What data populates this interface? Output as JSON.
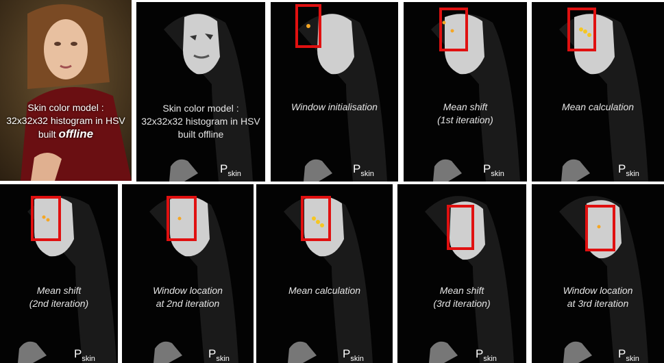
{
  "panels": [
    {
      "id": "p1",
      "caption": [
        "Skin color model :",
        "32x32x32 histogram in HSV",
        "built"
      ],
      "caption_emph": "offline",
      "photo": true
    },
    {
      "id": "p2",
      "caption": [
        "Skin color model :",
        "32x32x32 histogram in HSV",
        "built offline"
      ],
      "label_main": "P",
      "label_sub": "skin"
    },
    {
      "id": "p3",
      "caption": [
        "Window initialisation"
      ],
      "label_main": "P",
      "label_sub": "skin"
    },
    {
      "id": "p4",
      "caption": [
        "Mean shift",
        "(1st iteration)"
      ],
      "label_main": "P",
      "label_sub": "skin"
    },
    {
      "id": "p5",
      "caption": [
        "Mean calculation"
      ],
      "label_main": "P",
      "label_sub": "skin"
    },
    {
      "id": "p6",
      "caption": [
        "Mean shift",
        "(2nd iteration)"
      ],
      "label_main": "P",
      "label_sub": "skin"
    },
    {
      "id": "p7",
      "caption": [
        "Window location",
        "at 2nd iteration"
      ],
      "label_main": "P",
      "label_sub": "skin"
    },
    {
      "id": "p8",
      "caption": [
        "Mean calculation"
      ],
      "label_main": "P",
      "label_sub": "skin"
    },
    {
      "id": "p9",
      "caption": [
        "Mean shift",
        "(3rd iteration)"
      ],
      "label_main": "P",
      "label_sub": "skin"
    },
    {
      "id": "p10",
      "caption": [
        "Window location",
        "at 3rd iteration"
      ],
      "label_main": "P",
      "label_sub": "skin"
    }
  ],
  "colors": {
    "window": "#e01010",
    "point": "#f5a623",
    "skin": "#d8d8d8",
    "background": "#030303"
  }
}
